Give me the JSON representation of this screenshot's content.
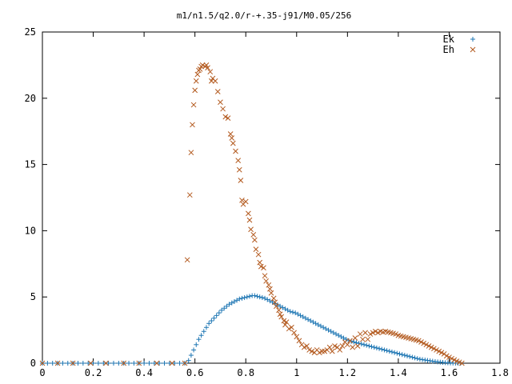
{
  "chart_data": {
    "type": "scatter",
    "title": "m1/n1.5/q2.0/r-+.35-j91/M0.05/256",
    "xlabel": "",
    "ylabel": "",
    "xlim": [
      0,
      1.8
    ],
    "ylim": [
      0,
      25
    ],
    "x_ticks": [
      {
        "value": 0,
        "label": "0"
      },
      {
        "value": 0.2,
        "label": "0.2"
      },
      {
        "value": 0.4,
        "label": "0.4"
      },
      {
        "value": 0.6,
        "label": "0.6"
      },
      {
        "value": 0.8,
        "label": "0.8"
      },
      {
        "value": 1.0,
        "label": "1"
      },
      {
        "value": 1.2,
        "label": "1.2"
      },
      {
        "value": 1.4,
        "label": "1.4"
      },
      {
        "value": 1.6,
        "label": "1.6"
      },
      {
        "value": 1.8,
        "label": "1.8"
      }
    ],
    "y_ticks": [
      {
        "value": 0,
        "label": "0"
      },
      {
        "value": 5,
        "label": "5"
      },
      {
        "value": 10,
        "label": "10"
      },
      {
        "value": 15,
        "label": "15"
      },
      {
        "value": 20,
        "label": "20"
      },
      {
        "value": 25,
        "label": "25"
      }
    ],
    "grid": false,
    "legend": "top-right",
    "series": [
      {
        "name": "Ek",
        "marker": "plus",
        "color": "#1f77b4",
        "points": [
          [
            0.0,
            0
          ],
          [
            0.02,
            0
          ],
          [
            0.04,
            0
          ],
          [
            0.06,
            0
          ],
          [
            0.08,
            0
          ],
          [
            0.1,
            0
          ],
          [
            0.12,
            0
          ],
          [
            0.14,
            0
          ],
          [
            0.16,
            0
          ],
          [
            0.18,
            0
          ],
          [
            0.2,
            0
          ],
          [
            0.22,
            0
          ],
          [
            0.24,
            0
          ],
          [
            0.26,
            0
          ],
          [
            0.28,
            0
          ],
          [
            0.3,
            0
          ],
          [
            0.32,
            0
          ],
          [
            0.34,
            0
          ],
          [
            0.36,
            0
          ],
          [
            0.38,
            0
          ],
          [
            0.4,
            0
          ],
          [
            0.42,
            0
          ],
          [
            0.44,
            0
          ],
          [
            0.46,
            0
          ],
          [
            0.48,
            0
          ],
          [
            0.5,
            0
          ],
          [
            0.52,
            0
          ],
          [
            0.54,
            0
          ],
          [
            0.56,
            0
          ],
          [
            0.575,
            0.2
          ],
          [
            0.585,
            0.6
          ],
          [
            0.595,
            1.0
          ],
          [
            0.605,
            1.4
          ],
          [
            0.615,
            1.8
          ],
          [
            0.625,
            2.1
          ],
          [
            0.635,
            2.4
          ],
          [
            0.645,
            2.7
          ],
          [
            0.655,
            3.0
          ],
          [
            0.665,
            3.2
          ],
          [
            0.675,
            3.4
          ],
          [
            0.685,
            3.6
          ],
          [
            0.695,
            3.8
          ],
          [
            0.705,
            4.0
          ],
          [
            0.715,
            4.15
          ],
          [
            0.725,
            4.3
          ],
          [
            0.735,
            4.45
          ],
          [
            0.745,
            4.55
          ],
          [
            0.755,
            4.65
          ],
          [
            0.765,
            4.75
          ],
          [
            0.775,
            4.85
          ],
          [
            0.785,
            4.9
          ],
          [
            0.795,
            4.95
          ],
          [
            0.805,
            5.0
          ],
          [
            0.815,
            5.05
          ],
          [
            0.825,
            5.1
          ],
          [
            0.835,
            5.1
          ],
          [
            0.845,
            5.05
          ],
          [
            0.855,
            5.0
          ],
          [
            0.865,
            4.95
          ],
          [
            0.875,
            4.9
          ],
          [
            0.885,
            4.8
          ],
          [
            0.895,
            4.7
          ],
          [
            0.905,
            4.6
          ],
          [
            0.915,
            4.5
          ],
          [
            0.925,
            4.4
          ],
          [
            0.935,
            4.3
          ],
          [
            0.945,
            4.2
          ],
          [
            0.955,
            4.1
          ],
          [
            0.965,
            4.0
          ],
          [
            0.975,
            3.9
          ],
          [
            0.985,
            3.85
          ],
          [
            0.995,
            3.8
          ],
          [
            1.005,
            3.7
          ],
          [
            1.015,
            3.6
          ],
          [
            1.025,
            3.5
          ],
          [
            1.035,
            3.4
          ],
          [
            1.045,
            3.3
          ],
          [
            1.055,
            3.2
          ],
          [
            1.065,
            3.1
          ],
          [
            1.075,
            3.0
          ],
          [
            1.085,
            2.9
          ],
          [
            1.095,
            2.8
          ],
          [
            1.105,
            2.7
          ],
          [
            1.115,
            2.6
          ],
          [
            1.125,
            2.5
          ],
          [
            1.135,
            2.4
          ],
          [
            1.145,
            2.3
          ],
          [
            1.155,
            2.2
          ],
          [
            1.165,
            2.1
          ],
          [
            1.175,
            2.0
          ],
          [
            1.185,
            1.9
          ],
          [
            1.195,
            1.8
          ],
          [
            1.205,
            1.7
          ],
          [
            1.215,
            1.65
          ],
          [
            1.225,
            1.6
          ],
          [
            1.235,
            1.55
          ],
          [
            1.245,
            1.5
          ],
          [
            1.255,
            1.45
          ],
          [
            1.265,
            1.4
          ],
          [
            1.275,
            1.35
          ],
          [
            1.285,
            1.3
          ],
          [
            1.295,
            1.25
          ],
          [
            1.305,
            1.2
          ],
          [
            1.315,
            1.15
          ],
          [
            1.325,
            1.1
          ],
          [
            1.335,
            1.05
          ],
          [
            1.345,
            1.0
          ],
          [
            1.355,
            0.95
          ],
          [
            1.365,
            0.9
          ],
          [
            1.375,
            0.85
          ],
          [
            1.385,
            0.8
          ],
          [
            1.395,
            0.75
          ],
          [
            1.405,
            0.7
          ],
          [
            1.415,
            0.65
          ],
          [
            1.425,
            0.6
          ],
          [
            1.435,
            0.55
          ],
          [
            1.445,
            0.5
          ],
          [
            1.455,
            0.45
          ],
          [
            1.465,
            0.4
          ],
          [
            1.475,
            0.35
          ],
          [
            1.485,
            0.3
          ],
          [
            1.495,
            0.27
          ],
          [
            1.505,
            0.24
          ],
          [
            1.515,
            0.21
          ],
          [
            1.525,
            0.18
          ],
          [
            1.535,
            0.15
          ],
          [
            1.545,
            0.12
          ],
          [
            1.555,
            0.1
          ],
          [
            1.565,
            0.08
          ],
          [
            1.575,
            0.06
          ],
          [
            1.585,
            0.04
          ],
          [
            1.595,
            0.03
          ],
          [
            1.605,
            0.02
          ],
          [
            1.615,
            0.01
          ],
          [
            1.625,
            0.0
          ],
          [
            1.635,
            0.0
          ],
          [
            1.645,
            0.0
          ]
        ]
      },
      {
        "name": "Eh",
        "marker": "cross",
        "color": "#b35a1f",
        "points": [
          [
            0.0,
            0
          ],
          [
            0.06,
            0
          ],
          [
            0.12,
            0
          ],
          [
            0.19,
            0
          ],
          [
            0.25,
            0
          ],
          [
            0.32,
            0
          ],
          [
            0.38,
            0
          ],
          [
            0.45,
            0
          ],
          [
            0.51,
            0
          ],
          [
            0.56,
            0
          ],
          [
            0.57,
            7.8
          ],
          [
            0.58,
            12.7
          ],
          [
            0.585,
            15.9
          ],
          [
            0.59,
            18.0
          ],
          [
            0.595,
            19.5
          ],
          [
            0.6,
            20.6
          ],
          [
            0.605,
            21.3
          ],
          [
            0.61,
            21.8
          ],
          [
            0.615,
            22.1
          ],
          [
            0.62,
            22.2
          ],
          [
            0.625,
            22.4
          ],
          [
            0.63,
            22.5
          ],
          [
            0.64,
            22.4
          ],
          [
            0.645,
            22.5
          ],
          [
            0.65,
            22.3
          ],
          [
            0.66,
            22.0
          ],
          [
            0.665,
            21.3
          ],
          [
            0.67,
            21.5
          ],
          [
            0.68,
            21.3
          ],
          [
            0.69,
            20.5
          ],
          [
            0.7,
            19.7
          ],
          [
            0.71,
            19.2
          ],
          [
            0.72,
            18.6
          ],
          [
            0.73,
            18.5
          ],
          [
            0.74,
            17.3
          ],
          [
            0.745,
            17.0
          ],
          [
            0.75,
            16.6
          ],
          [
            0.76,
            16.0
          ],
          [
            0.77,
            15.3
          ],
          [
            0.775,
            14.6
          ],
          [
            0.78,
            13.8
          ],
          [
            0.785,
            12.3
          ],
          [
            0.79,
            12.0
          ],
          [
            0.8,
            12.2
          ],
          [
            0.81,
            11.3
          ],
          [
            0.815,
            10.8
          ],
          [
            0.82,
            10.1
          ],
          [
            0.83,
            9.7
          ],
          [
            0.835,
            9.3
          ],
          [
            0.84,
            8.6
          ],
          [
            0.85,
            8.2
          ],
          [
            0.855,
            7.6
          ],
          [
            0.86,
            7.3
          ],
          [
            0.87,
            7.2
          ],
          [
            0.875,
            6.6
          ],
          [
            0.88,
            6.2
          ],
          [
            0.89,
            5.9
          ],
          [
            0.895,
            5.6
          ],
          [
            0.9,
            5.3
          ],
          [
            0.91,
            4.9
          ],
          [
            0.915,
            4.6
          ],
          [
            0.92,
            4.3
          ],
          [
            0.93,
            4.0
          ],
          [
            0.935,
            3.7
          ],
          [
            0.94,
            3.5
          ],
          [
            0.95,
            3.2
          ],
          [
            0.955,
            2.9
          ],
          [
            0.96,
            3.1
          ],
          [
            0.97,
            2.6
          ],
          [
            0.98,
            2.7
          ],
          [
            0.99,
            2.3
          ],
          [
            1.0,
            2.0
          ],
          [
            1.01,
            1.7
          ],
          [
            1.02,
            1.4
          ],
          [
            1.03,
            1.2
          ],
          [
            1.04,
            1.3
          ],
          [
            1.05,
            1.0
          ],
          [
            1.06,
            0.9
          ],
          [
            1.07,
            0.8
          ],
          [
            1.08,
            1.0
          ],
          [
            1.09,
            0.8
          ],
          [
            1.1,
            0.9
          ],
          [
            1.11,
            0.9
          ],
          [
            1.12,
            1.0
          ],
          [
            1.13,
            1.2
          ],
          [
            1.14,
            0.9
          ],
          [
            1.15,
            1.3
          ],
          [
            1.16,
            1.2
          ],
          [
            1.17,
            1.0
          ],
          [
            1.18,
            1.3
          ],
          [
            1.19,
            1.6
          ],
          [
            1.2,
            1.4
          ],
          [
            1.21,
            1.7
          ],
          [
            1.22,
            1.2
          ],
          [
            1.23,
            1.9
          ],
          [
            1.24,
            1.3
          ],
          [
            1.25,
            2.2
          ],
          [
            1.26,
            1.8
          ],
          [
            1.27,
            2.3
          ],
          [
            1.28,
            1.8
          ],
          [
            1.29,
            2.2
          ],
          [
            1.3,
            2.3
          ],
          [
            1.31,
            2.4
          ],
          [
            1.32,
            2.3
          ],
          [
            1.33,
            2.4
          ],
          [
            1.34,
            2.35
          ],
          [
            1.35,
            2.4
          ],
          [
            1.36,
            2.35
          ],
          [
            1.37,
            2.3
          ],
          [
            1.38,
            2.25
          ],
          [
            1.39,
            2.2
          ],
          [
            1.4,
            2.1
          ],
          [
            1.41,
            2.05
          ],
          [
            1.42,
            2.0
          ],
          [
            1.43,
            1.95
          ],
          [
            1.44,
            1.9
          ],
          [
            1.45,
            1.85
          ],
          [
            1.46,
            1.8
          ],
          [
            1.47,
            1.75
          ],
          [
            1.48,
            1.7
          ],
          [
            1.49,
            1.6
          ],
          [
            1.5,
            1.5
          ],
          [
            1.51,
            1.4
          ],
          [
            1.52,
            1.3
          ],
          [
            1.53,
            1.2
          ],
          [
            1.54,
            1.1
          ],
          [
            1.55,
            1.0
          ],
          [
            1.56,
            0.9
          ],
          [
            1.57,
            0.8
          ],
          [
            1.58,
            0.7
          ],
          [
            1.59,
            0.55
          ],
          [
            1.6,
            0.45
          ],
          [
            1.61,
            0.35
          ],
          [
            1.62,
            0.25
          ],
          [
            1.63,
            0.15
          ],
          [
            1.64,
            0.08
          ],
          [
            1.65,
            0.0
          ]
        ]
      }
    ]
  }
}
